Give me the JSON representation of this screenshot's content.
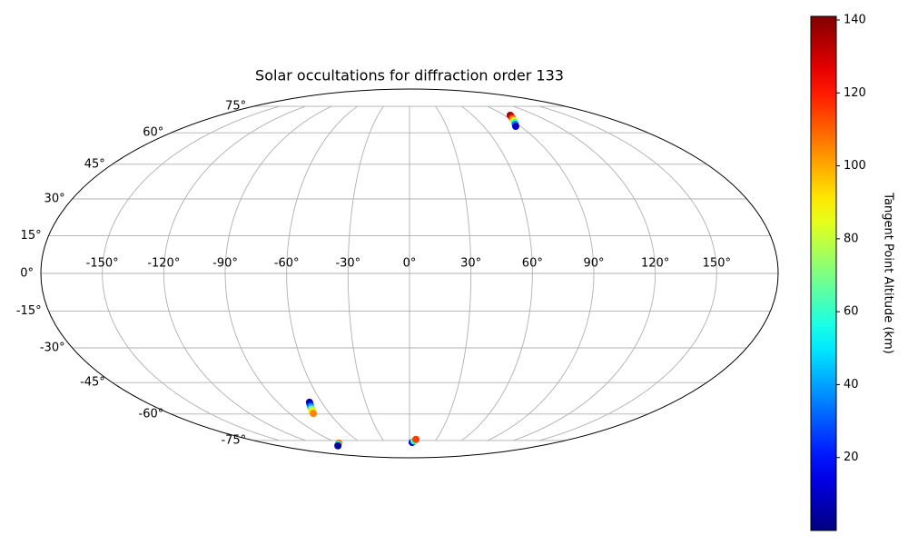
{
  "chart_data": {
    "type": "scatter",
    "projection": "mollweide",
    "title": "Solar occultations for diffraction order 133",
    "x": [
      95.6,
      94.0,
      92.4,
      90.8,
      89.2,
      87.6,
      86.0,
      -68.3,
      -69.1,
      -69.9,
      -70.6,
      -71.4,
      -72.2,
      -88.7,
      -93.6,
      -98.5,
      3.3,
      5.2,
      7.2
    ],
    "y": [
      69.5,
      68.5,
      67.5,
      66.4,
      65.4,
      64.4,
      63.4,
      -54.2,
      -55.3,
      -56.4,
      -57.5,
      -58.6,
      -59.7,
      -76.8,
      -77.7,
      -78.6,
      -76.3,
      -75.3,
      -74.3
    ],
    "colors": [
      140,
      125,
      105,
      85,
      60,
      35,
      10,
      5,
      20,
      40,
      70,
      90,
      105,
      110,
      60,
      5,
      10,
      60,
      115
    ],
    "xlim": [
      -180,
      180
    ],
    "ylim": [
      -90,
      90
    ],
    "xticks": [
      {
        "value": -150,
        "label": "-150°"
      },
      {
        "value": -120,
        "label": "-120°"
      },
      {
        "value": -90,
        "label": "-90°"
      },
      {
        "value": -60,
        "label": "-60°"
      },
      {
        "value": -30,
        "label": "-30°"
      },
      {
        "value": 0,
        "label": "0°"
      },
      {
        "value": 30,
        "label": "30°"
      },
      {
        "value": 60,
        "label": "60°"
      },
      {
        "value": 90,
        "label": "90°"
      },
      {
        "value": 120,
        "label": "120°"
      },
      {
        "value": 150,
        "label": "150°"
      }
    ],
    "yticks": [
      {
        "value": -75,
        "label": "-75°"
      },
      {
        "value": -60,
        "label": "-60°"
      },
      {
        "value": -45,
        "label": "-45°"
      },
      {
        "value": -30,
        "label": "-30°"
      },
      {
        "value": -15,
        "label": "-15°"
      },
      {
        "value": 0,
        "label": "0°"
      },
      {
        "value": 15,
        "label": "15°"
      },
      {
        "value": 30,
        "label": "30°"
      },
      {
        "value": 45,
        "label": "45°"
      },
      {
        "value": 60,
        "label": "60°"
      },
      {
        "value": 75,
        "label": "75°"
      }
    ],
    "grid": true,
    "colormap": "jet",
    "colorbar_label": "Tangent Point Altitude (km)",
    "clim": [
      0,
      141
    ],
    "cticks": [
      20,
      40,
      60,
      80,
      100,
      120,
      140
    ]
  }
}
